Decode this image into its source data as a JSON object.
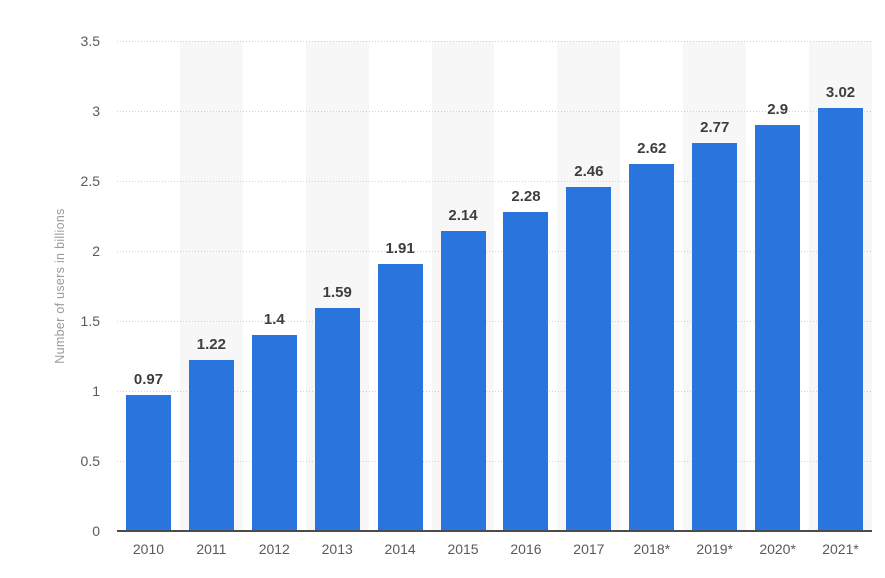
{
  "chart_data": {
    "type": "bar",
    "ylabel": "Number of users in billions",
    "categories": [
      "2010",
      "2011",
      "2012",
      "2013",
      "2014",
      "2015",
      "2016",
      "2017",
      "2018*",
      "2019*",
      "2020*",
      "2021*"
    ],
    "values": [
      0.97,
      1.22,
      1.4,
      1.59,
      1.91,
      2.14,
      2.28,
      2.46,
      2.62,
      2.77,
      2.9,
      3.02
    ],
    "value_labels": [
      "0.97",
      "1.22",
      "1.4",
      "1.59",
      "1.91",
      "2.14",
      "2.28",
      "2.46",
      "2.62",
      "2.77",
      "2.9",
      "3.02"
    ],
    "ylim": [
      0,
      3.5
    ],
    "yticks": [
      0,
      0.5,
      1,
      1.5,
      2,
      2.5,
      3,
      3.5
    ],
    "ytick_labels": [
      "0",
      "0.5",
      "1",
      "1.5",
      "2",
      "2.5",
      "3",
      "3.5"
    ],
    "legend": "none",
    "grid": "horizontal-dotted",
    "banded_columns": [
      1,
      3,
      5,
      7,
      9,
      11
    ],
    "colors": {
      "bar": "#2a74dd",
      "band": "#f7f7f7",
      "gridline": "#d0d0d0",
      "axis_line": "#4c4c4c",
      "tick_label": "#5a5a5a",
      "value_label": "#3e3e3e",
      "axis_title": "#9a9a9a",
      "background": "#ffffff"
    }
  }
}
